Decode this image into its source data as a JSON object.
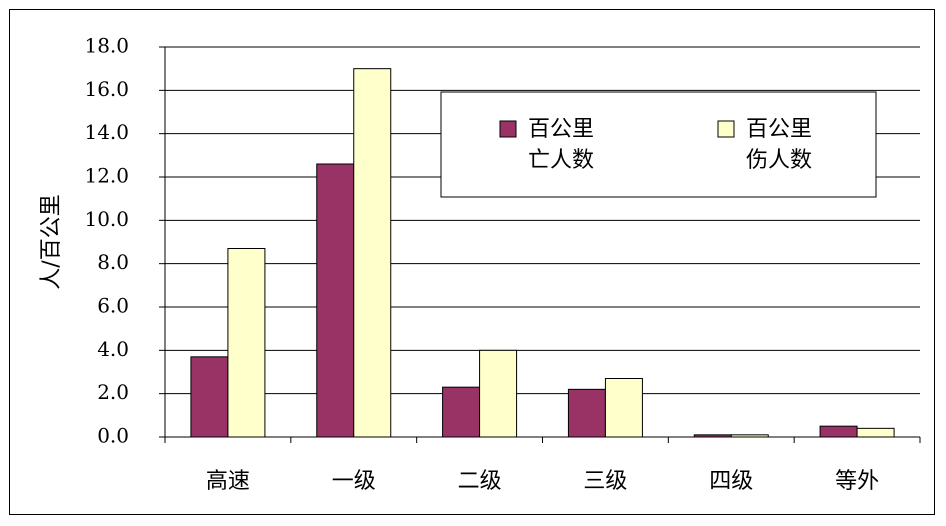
{
  "chart_data": {
    "type": "bar",
    "categories": [
      "高速",
      "一级",
      "二级",
      "三级",
      "四级",
      "等外"
    ],
    "series": [
      {
        "name": "百公里亡人数",
        "name_lines": [
          "百公里",
          "亡人数"
        ],
        "values": [
          3.7,
          12.6,
          2.3,
          2.2,
          0.1,
          0.5
        ],
        "color": "#993366"
      },
      {
        "name": "百公里伤人数",
        "name_lines": [
          "百公里",
          "伤人数"
        ],
        "values": [
          8.7,
          17.0,
          4.0,
          2.7,
          0.1,
          0.4
        ],
        "color": "#FFFFCC"
      }
    ],
    "ylabel": "人/百公里",
    "ylim": [
      0,
      18
    ],
    "yticks": [
      "0.0",
      "2.0",
      "4.0",
      "6.0",
      "8.0",
      "10.0",
      "12.0",
      "14.0",
      "16.0",
      "18.0"
    ],
    "grid": true,
    "legend_position": "top-right"
  }
}
